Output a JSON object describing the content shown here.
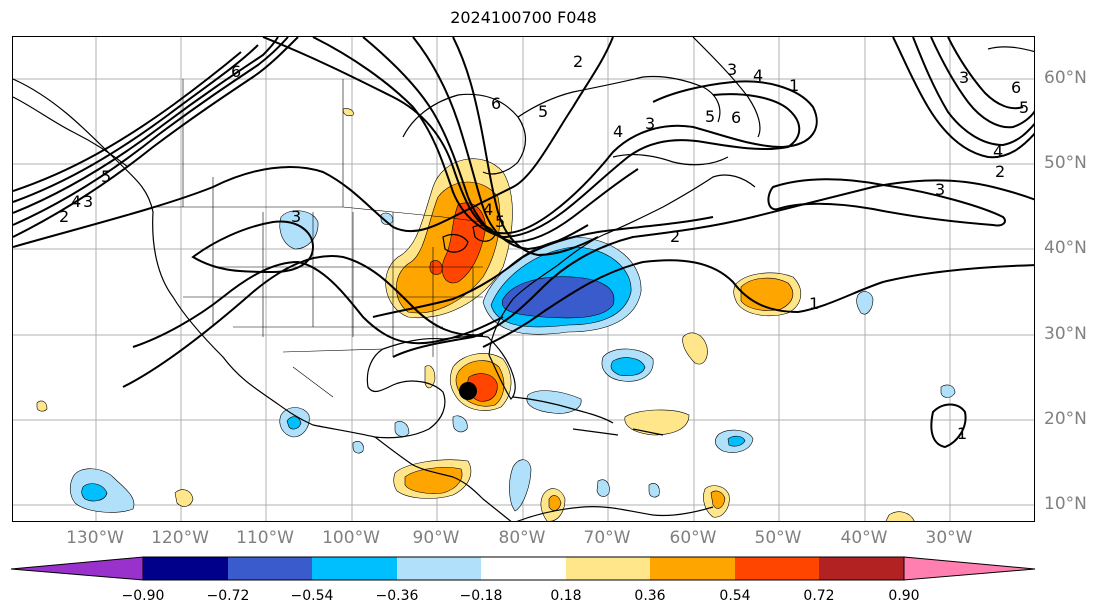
{
  "title": "2024100700 F048",
  "colors": {
    "land_outline": "#000000",
    "contour": "#000000",
    "grid": "#b0b0b0",
    "tick_label": "#808080",
    "storm_marker": "#000000"
  },
  "longitude_labels": [
    "130°W",
    "120°W",
    "110°W",
    "100°W",
    "90°W",
    "80°W",
    "70°W",
    "60°W",
    "50°W",
    "40°W",
    "30°W"
  ],
  "latitude_labels": [
    "60°N",
    "50°N",
    "40°N",
    "30°N",
    "20°N",
    "10°N"
  ],
  "colorbar": {
    "ticks": [
      "−0.90",
      "−0.72",
      "−0.54",
      "−0.36",
      "−0.18",
      "0.18",
      "0.36",
      "0.54",
      "0.72",
      "0.90"
    ],
    "colors": [
      "#9932cc",
      "#00008b",
      "#3a5bcc",
      "#00bfff",
      "#b0e0fa",
      "#ffffff",
      "#ffe68a",
      "#ffa500",
      "#ff4500",
      "#b22222",
      "#ff7fb0"
    ]
  },
  "contour_labels": [
    {
      "text": "6"
    },
    {
      "text": "5"
    },
    {
      "text": "4"
    },
    {
      "text": "3"
    },
    {
      "text": "2"
    },
    {
      "text": "5"
    },
    {
      "text": "4"
    },
    {
      "text": "3"
    },
    {
      "text": "6"
    },
    {
      "text": "5"
    },
    {
      "text": "4"
    },
    {
      "text": "3"
    },
    {
      "text": "6"
    },
    {
      "text": "5"
    },
    {
      "text": "4"
    },
    {
      "text": "3"
    },
    {
      "text": "2"
    },
    {
      "text": "2"
    },
    {
      "text": "1"
    },
    {
      "text": "6"
    },
    {
      "text": "5"
    },
    {
      "text": "4"
    },
    {
      "text": "3"
    },
    {
      "text": "2"
    },
    {
      "text": "1"
    },
    {
      "text": "3"
    },
    {
      "text": "1"
    }
  ]
}
